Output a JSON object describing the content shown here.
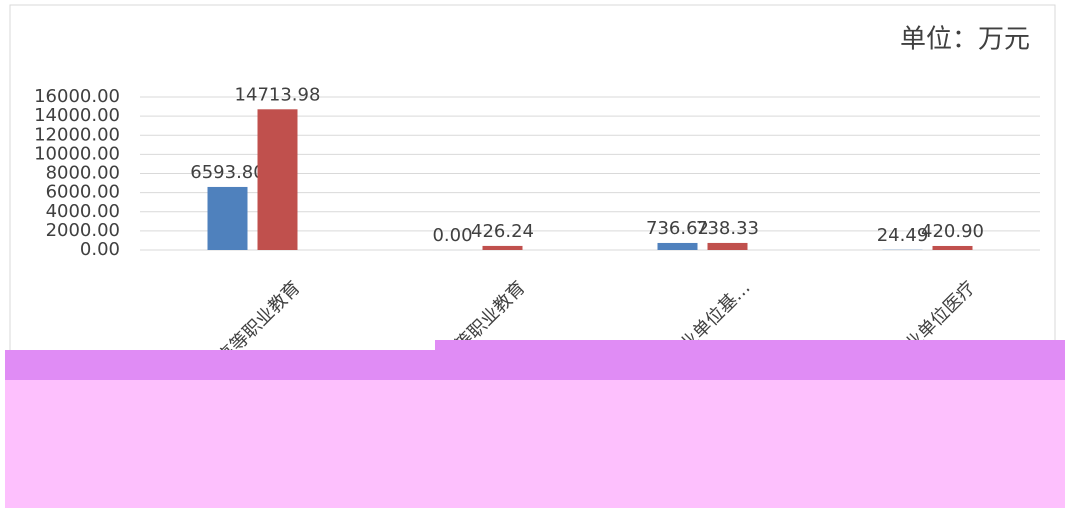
{
  "chart_data": {
    "type": "bar",
    "annotation": "单位：万元",
    "categories": [
      "高等职业教育",
      "中等职业教育",
      "事业单位基…",
      "事业单位医疗"
    ],
    "series": [
      {
        "color": "#4f81bd",
        "values": [
          6593.8,
          0,
          736.62,
          24.49
        ],
        "value_labels": [
          "6593.80",
          "0.00",
          "736.62",
          "24.49"
        ]
      },
      {
        "color": "#c0504d",
        "values": [
          14713.98,
          426.24,
          738.33,
          420.9
        ],
        "value_labels": [
          "14713.98",
          "426.24",
          "738.33",
          "420.90"
        ]
      }
    ],
    "ylim": [
      0,
      16000
    ],
    "yticks": [
      {
        "value": 0,
        "label": "0.00"
      },
      {
        "value": 2000,
        "label": "2000.00"
      },
      {
        "value": 4000,
        "label": "4000.00"
      },
      {
        "value": 6000,
        "label": "6000.00"
      },
      {
        "value": 8000,
        "label": "8000.00"
      },
      {
        "value": 10000,
        "label": "10000.00"
      },
      {
        "value": 12000,
        "label": "12000.00"
      },
      {
        "value": 14000,
        "label": "14000.00"
      },
      {
        "value": 16000,
        "label": "16000.00"
      }
    ],
    "grid": true
  }
}
